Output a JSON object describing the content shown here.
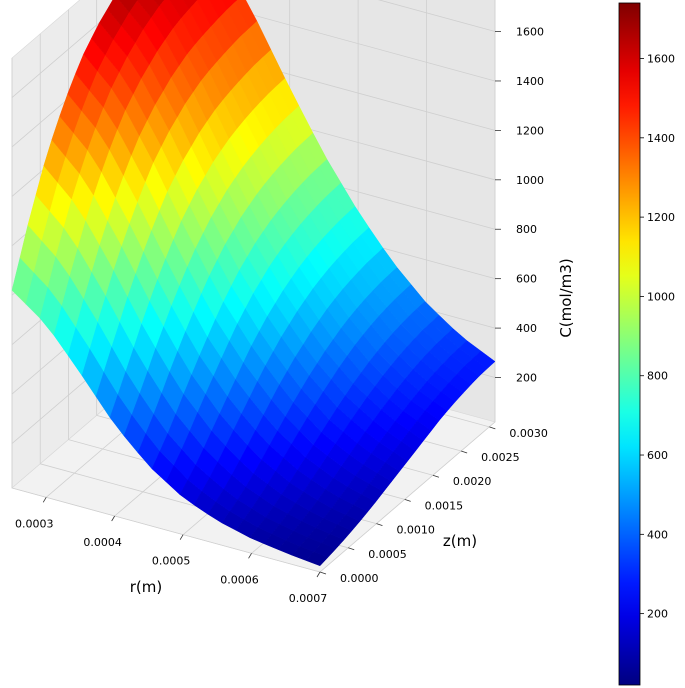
{
  "chart_data": {
    "type": "surface3d",
    "title": "",
    "xlabel": "r(m)",
    "ylabel": "z(m)",
    "zlabel": "C(mol/m3)",
    "xlim": [
      0.00025,
      0.0007
    ],
    "ylim": [
      0.0,
      0.0031
    ],
    "zlim": [
      20,
      1760
    ],
    "x_ticks": [
      "0.0003",
      "0.0004",
      "0.0005",
      "0.0006",
      "0.0007"
    ],
    "y_ticks": [
      "0.0000",
      "0.0005",
      "0.0010",
      "0.0015",
      "0.0020",
      "0.0025",
      "0.0030"
    ],
    "z_ticks": [
      "200",
      "400",
      "600",
      "800",
      "1000",
      "1200",
      "1400",
      "1600"
    ],
    "grid": true,
    "colormap": "jet",
    "colorbar": {
      "min": 20,
      "max": 1740,
      "ticks": [
        "200",
        "400",
        "600",
        "800",
        "1000",
        "1200",
        "1400",
        "1600"
      ]
    },
    "r": [
      0.00025,
      0.0003,
      0.00035,
      0.0004,
      0.00045,
      0.0005,
      0.00055,
      0.0006,
      0.00065,
      0.0007
    ],
    "z": [
      0.0,
      0.00031,
      0.00062,
      0.00093,
      0.00124,
      0.00155,
      0.00186,
      0.00217,
      0.00248,
      0.00279,
      0.0031
    ],
    "C": [
      [
        820,
        1050,
        1250,
        1400,
        1520,
        1600,
        1660,
        1700,
        1720,
        1735,
        1740
      ],
      [
        720,
        930,
        1120,
        1270,
        1390,
        1470,
        1530,
        1570,
        1590,
        1605,
        1610
      ],
      [
        560,
        740,
        910,
        1050,
        1170,
        1250,
        1310,
        1350,
        1370,
        1385,
        1390
      ],
      [
        390,
        530,
        680,
        810,
        920,
        1000,
        1060,
        1100,
        1125,
        1140,
        1145
      ],
      [
        260,
        360,
        480,
        590,
        690,
        770,
        830,
        870,
        895,
        910,
        915
      ],
      [
        170,
        240,
        330,
        420,
        510,
        580,
        635,
        675,
        700,
        715,
        720
      ],
      [
        115,
        160,
        220,
        290,
        360,
        420,
        470,
        510,
        535,
        550,
        555
      ],
      [
        80,
        110,
        150,
        200,
        250,
        300,
        345,
        380,
        405,
        420,
        425
      ],
      [
        60,
        80,
        105,
        140,
        180,
        220,
        255,
        285,
        310,
        325,
        330
      ],
      [
        45,
        60,
        80,
        105,
        135,
        165,
        195,
        225,
        245,
        260,
        265
      ]
    ]
  }
}
